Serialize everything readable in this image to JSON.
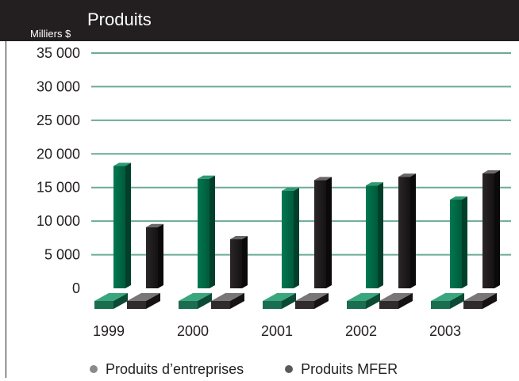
{
  "chart_data": {
    "type": "bar",
    "title": "Produits",
    "ylabel": "Milliers $",
    "xlabel": "",
    "categories": [
      "1999",
      "2000",
      "2001",
      "2002",
      "2003"
    ],
    "ylim": [
      0,
      35000
    ],
    "yticks": [
      0,
      5000,
      10000,
      15000,
      20000,
      25000,
      30000,
      35000
    ],
    "ytick_labels": [
      "0",
      "5 000",
      "10 000",
      "15 000",
      "20 000",
      "25 000",
      "30 000",
      "35 000"
    ],
    "grid": true,
    "legend_position": "bottom",
    "series": [
      {
        "name": "Produits d’entreprises",
        "values": [
          18200,
          16300,
          14500,
          15300,
          13200
        ],
        "color": "#006a4e"
      },
      {
        "name": "Produits MFER",
        "values": [
          9100,
          7300,
          16100,
          16600,
          17100
        ],
        "color": "#231f20"
      }
    ]
  },
  "colors": {
    "header_bg": "#231f20",
    "gridline": "#6cab94",
    "legend_dot_1": "#8a8a8a",
    "legend_dot_2": "#5a5a5a"
  }
}
